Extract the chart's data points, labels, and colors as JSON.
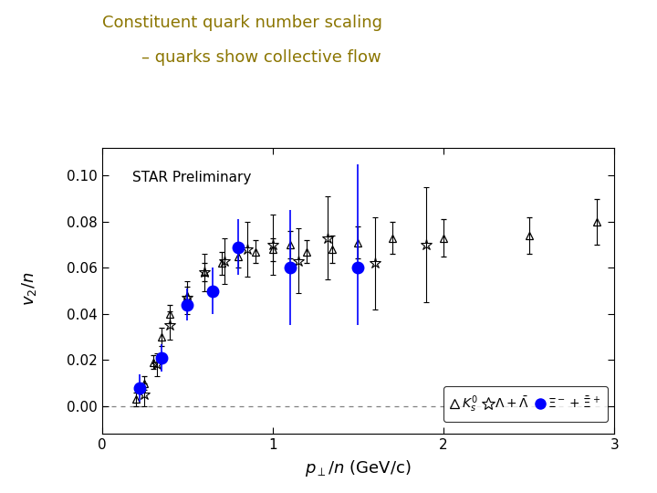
{
  "title_line1": "Constituent quark number scaling",
  "title_line2": "– quarks show collective flow",
  "title_color": "#8B7500",
  "text_label": "STAR Preliminary",
  "xlim": [
    0,
    3
  ],
  "ylim": [
    -0.012,
    0.112
  ],
  "xticks": [
    0,
    1,
    2,
    3
  ],
  "yticks": [
    0,
    0.02,
    0.04,
    0.06,
    0.08,
    0.1
  ],
  "Ks0_x": [
    0.2,
    0.25,
    0.3,
    0.35,
    0.4,
    0.5,
    0.6,
    0.7,
    0.8,
    0.9,
    1.0,
    1.1,
    1.2,
    1.35,
    1.5,
    1.7,
    2.0,
    2.5,
    2.9
  ],
  "Ks0_y": [
    0.003,
    0.01,
    0.019,
    0.03,
    0.04,
    0.048,
    0.058,
    0.062,
    0.065,
    0.067,
    0.068,
    0.07,
    0.067,
    0.068,
    0.071,
    0.073,
    0.073,
    0.074,
    0.08
  ],
  "Ks0_yerr": [
    0.003,
    0.003,
    0.003,
    0.004,
    0.004,
    0.004,
    0.004,
    0.005,
    0.005,
    0.005,
    0.005,
    0.006,
    0.005,
    0.006,
    0.007,
    0.007,
    0.008,
    0.008,
    0.01
  ],
  "Lambda_x": [
    0.25,
    0.32,
    0.4,
    0.5,
    0.6,
    0.72,
    0.85,
    1.0,
    1.15,
    1.32,
    1.6,
    1.9
  ],
  "Lambda_y": [
    0.005,
    0.018,
    0.035,
    0.047,
    0.058,
    0.063,
    0.068,
    0.07,
    0.063,
    0.073,
    0.062,
    0.07
  ],
  "Lambda_yerr": [
    0.005,
    0.005,
    0.006,
    0.007,
    0.008,
    0.01,
    0.012,
    0.013,
    0.014,
    0.018,
    0.02,
    0.025
  ],
  "Xi_x": [
    0.22,
    0.35,
    0.5,
    0.65,
    0.8,
    1.1,
    1.5
  ],
  "Xi_y": [
    0.008,
    0.021,
    0.044,
    0.05,
    0.069,
    0.06,
    0.06
  ],
  "Xi_yerr_lo": [
    0.006,
    0.006,
    0.007,
    0.01,
    0.012,
    0.025,
    0.025
  ],
  "Xi_yerr_hi": [
    0.006,
    0.006,
    0.007,
    0.01,
    0.012,
    0.025,
    0.045
  ],
  "bg_color": "#ffffff",
  "Xi_color": "#0000ff"
}
